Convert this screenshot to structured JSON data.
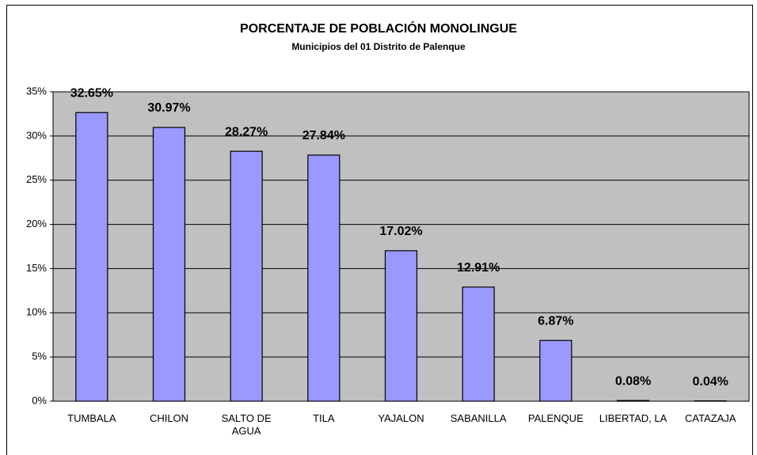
{
  "chart_data": {
    "type": "bar",
    "title": "PORCENTAJE DE POBLACIÓN MONOLINGUE",
    "subtitle": "Municipios del 01 Distrito de Palenque",
    "categories": [
      "TUMBALA",
      "CHILON",
      "SALTO DE AGUA",
      "TILA",
      "YAJALON",
      "SABANILLA",
      "PALENQUE",
      "LIBERTAD, LA",
      "CATAZAJA"
    ],
    "values": [
      32.65,
      30.97,
      28.27,
      27.84,
      17.02,
      12.91,
      6.87,
      0.08,
      0.04
    ],
    "value_labels": [
      "32.65%",
      "30.97%",
      "28.27%",
      "27.84%",
      "17.02%",
      "12.91%",
      "6.87%",
      "0.08%",
      "0.04%"
    ],
    "color": "#9999ff",
    "plot_background": "#c0c0c0",
    "ylim": [
      0,
      35
    ],
    "yticks": [
      {
        "value": 0,
        "label": "0%"
      },
      {
        "value": 5,
        "label": "5%"
      },
      {
        "value": 10,
        "label": "10%"
      },
      {
        "value": 15,
        "label": "15%"
      },
      {
        "value": 20,
        "label": "20%"
      },
      {
        "value": 25,
        "label": "25%"
      },
      {
        "value": 30,
        "label": "30%"
      },
      {
        "value": 35,
        "label": "35%"
      }
    ],
    "grid": true
  }
}
